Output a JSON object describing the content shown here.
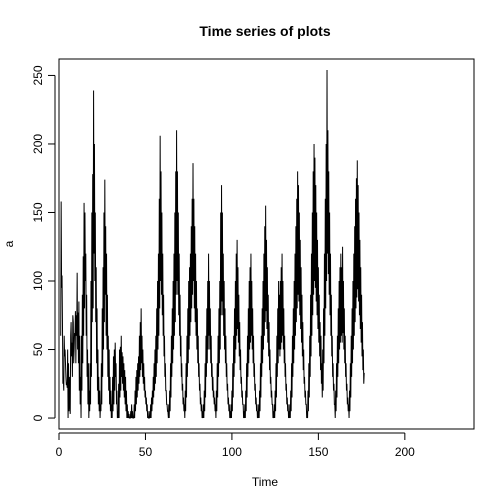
{
  "chart_data": {
    "type": "line",
    "title": "Time series of plots",
    "xlabel": "Time",
    "ylabel": "a",
    "xlim": [
      0,
      240
    ],
    "ylim": [
      -8,
      262
    ],
    "x_ticks": [
      0,
      50,
      100,
      150,
      200
    ],
    "y_ticks": [
      0,
      50,
      100,
      150,
      200,
      250
    ],
    "grid": false,
    "x_start": 1,
    "x_step": 0.25,
    "series": [
      {
        "values": [
          60,
          158,
          95,
          104,
          70,
          25,
          30,
          20,
          60,
          45,
          50,
          40,
          30,
          24,
          26,
          22,
          50,
          0,
          40,
          5,
          30,
          10,
          3,
          60,
          70,
          45,
          55,
          30,
          75,
          70,
          40,
          50,
          62,
          60,
          78,
          40,
          75,
          60,
          106,
          50,
          77,
          40,
          85,
          20,
          60,
          10,
          30,
          0,
          60,
          20,
          90,
          40,
          118,
          60,
          157,
          80,
          150,
          100,
          120,
          60,
          90,
          30,
          50,
          10,
          40,
          0,
          20,
          5,
          40,
          10,
          100,
          30,
          150,
          70,
          178,
          80,
          239,
          120,
          200,
          100,
          150,
          70,
          110,
          40,
          80,
          20,
          50,
          10,
          30,
          5,
          20,
          0,
          10,
          5,
          40,
          10,
          80,
          30,
          110,
          50,
          150,
          70,
          174,
          90,
          140,
          60,
          120,
          50,
          90,
          30,
          60,
          20,
          50,
          10,
          30,
          5,
          20,
          0,
          10,
          0,
          30,
          5,
          45,
          10,
          50,
          20,
          55,
          30,
          40,
          10,
          20,
          0,
          5,
          0,
          25,
          0,
          50,
          15,
          52,
          20,
          60,
          30,
          48,
          25,
          45,
          20,
          40,
          15,
          35,
          10,
          30,
          5,
          20,
          0,
          10,
          0,
          5,
          0,
          3,
          0,
          0,
          0,
          5,
          0,
          10,
          0,
          5,
          0,
          0,
          0,
          10,
          0,
          20,
          5,
          30,
          10,
          35,
          15,
          40,
          20,
          45,
          25,
          60,
          30,
          70,
          35,
          80,
          40,
          60,
          30,
          50,
          25,
          40,
          20,
          30,
          15,
          20,
          10,
          15,
          5,
          10,
          0,
          5,
          0,
          0,
          0,
          5,
          0,
          10,
          0,
          15,
          5,
          20,
          10,
          30,
          15,
          40,
          20,
          50,
          25,
          60,
          30,
          80,
          40,
          100,
          50,
          120,
          60,
          160,
          80,
          206,
          100,
          180,
          90,
          150,
          75,
          120,
          60,
          90,
          45,
          60,
          30,
          40,
          20,
          20,
          10,
          10,
          5,
          5,
          0,
          10,
          0,
          20,
          5,
          40,
          15,
          60,
          30,
          80,
          40,
          100,
          50,
          120,
          60,
          150,
          70,
          180,
          90,
          210,
          100,
          180,
          90,
          150,
          75,
          120,
          60,
          90,
          45,
          60,
          30,
          40,
          20,
          25,
          10,
          15,
          5,
          10,
          0,
          20,
          5,
          40,
          15,
          60,
          30,
          80,
          40,
          100,
          50,
          110,
          60,
          120,
          70,
          140,
          80,
          160,
          90,
          186,
          100,
          160,
          80,
          140,
          70,
          120,
          60,
          100,
          50,
          80,
          40,
          60,
          30,
          40,
          20,
          25,
          10,
          15,
          5,
          10,
          0,
          5,
          0,
          10,
          0,
          20,
          5,
          40,
          15,
          60,
          30,
          80,
          40,
          100,
          50,
          120,
          60,
          100,
          50,
          80,
          40,
          60,
          30,
          40,
          20,
          30,
          15,
          20,
          10,
          15,
          5,
          10,
          0,
          20,
          5,
          40,
          15,
          60,
          30,
          80,
          40,
          100,
          50,
          150,
          75,
          170,
          85,
          150,
          75,
          120,
          60,
          100,
          50,
          80,
          40,
          60,
          30,
          40,
          20,
          25,
          10,
          15,
          5,
          10,
          0,
          5,
          0,
          10,
          0,
          20,
          5,
          40,
          15,
          60,
          30,
          80,
          40,
          100,
          50,
          120,
          60,
          130,
          65,
          110,
          55,
          90,
          45,
          70,
          35,
          50,
          25,
          30,
          15,
          20,
          10,
          10,
          0,
          5,
          0,
          10,
          0,
          20,
          5,
          40,
          15,
          60,
          30,
          80,
          40,
          100,
          50,
          110,
          55,
          120,
          60,
          100,
          50,
          80,
          40,
          60,
          30,
          40,
          20,
          25,
          10,
          15,
          5,
          10,
          0,
          5,
          0,
          10,
          0,
          20,
          5,
          40,
          15,
          60,
          30,
          80,
          40,
          100,
          50,
          120,
          60,
          140,
          70,
          155,
          78,
          130,
          65,
          110,
          55,
          90,
          45,
          70,
          35,
          50,
          25,
          30,
          15,
          20,
          10,
          10,
          0,
          5,
          0,
          10,
          0,
          20,
          5,
          40,
          15,
          60,
          30,
          80,
          40,
          100,
          50,
          90,
          45,
          100,
          50,
          110,
          55,
          120,
          60,
          100,
          50,
          80,
          40,
          60,
          30,
          40,
          20,
          25,
          10,
          15,
          5,
          10,
          0,
          5,
          0,
          10,
          0,
          20,
          5,
          40,
          15,
          60,
          30,
          80,
          40,
          100,
          50,
          120,
          60,
          140,
          70,
          160,
          80,
          180,
          90,
          170,
          85,
          150,
          75,
          130,
          65,
          110,
          55,
          90,
          45,
          70,
          35,
          50,
          25,
          30,
          15,
          20,
          10,
          10,
          0,
          5,
          0,
          20,
          5,
          40,
          15,
          60,
          30,
          90,
          45,
          120,
          60,
          150,
          75,
          180,
          90,
          200,
          100,
          190,
          95,
          170,
          85,
          150,
          75,
          130,
          65,
          110,
          55,
          90,
          45,
          70,
          35,
          60,
          25,
          40,
          15,
          50,
          20,
          80,
          40,
          120,
          60,
          160,
          80,
          200,
          100,
          254,
          120,
          210,
          105,
          180,
          90,
          150,
          75,
          120,
          60,
          90,
          45,
          60,
          30,
          40,
          20,
          25,
          10,
          10,
          0,
          20,
          5,
          40,
          15,
          60,
          30,
          80,
          40,
          100,
          50,
          110,
          55,
          120,
          60,
          110,
          55,
          125,
          62,
          100,
          50,
          80,
          40,
          60,
          30,
          40,
          20,
          25,
          10,
          15,
          5,
          10,
          0,
          20,
          5,
          40,
          15,
          60,
          30,
          80,
          40,
          100,
          50,
          120,
          60,
          140,
          70,
          160,
          80,
          175,
          88,
          188,
          94,
          170,
          85,
          150,
          75,
          130,
          65,
          110,
          55,
          90,
          45,
          70,
          35,
          50,
          25,
          33
        ]
      }
    ]
  }
}
